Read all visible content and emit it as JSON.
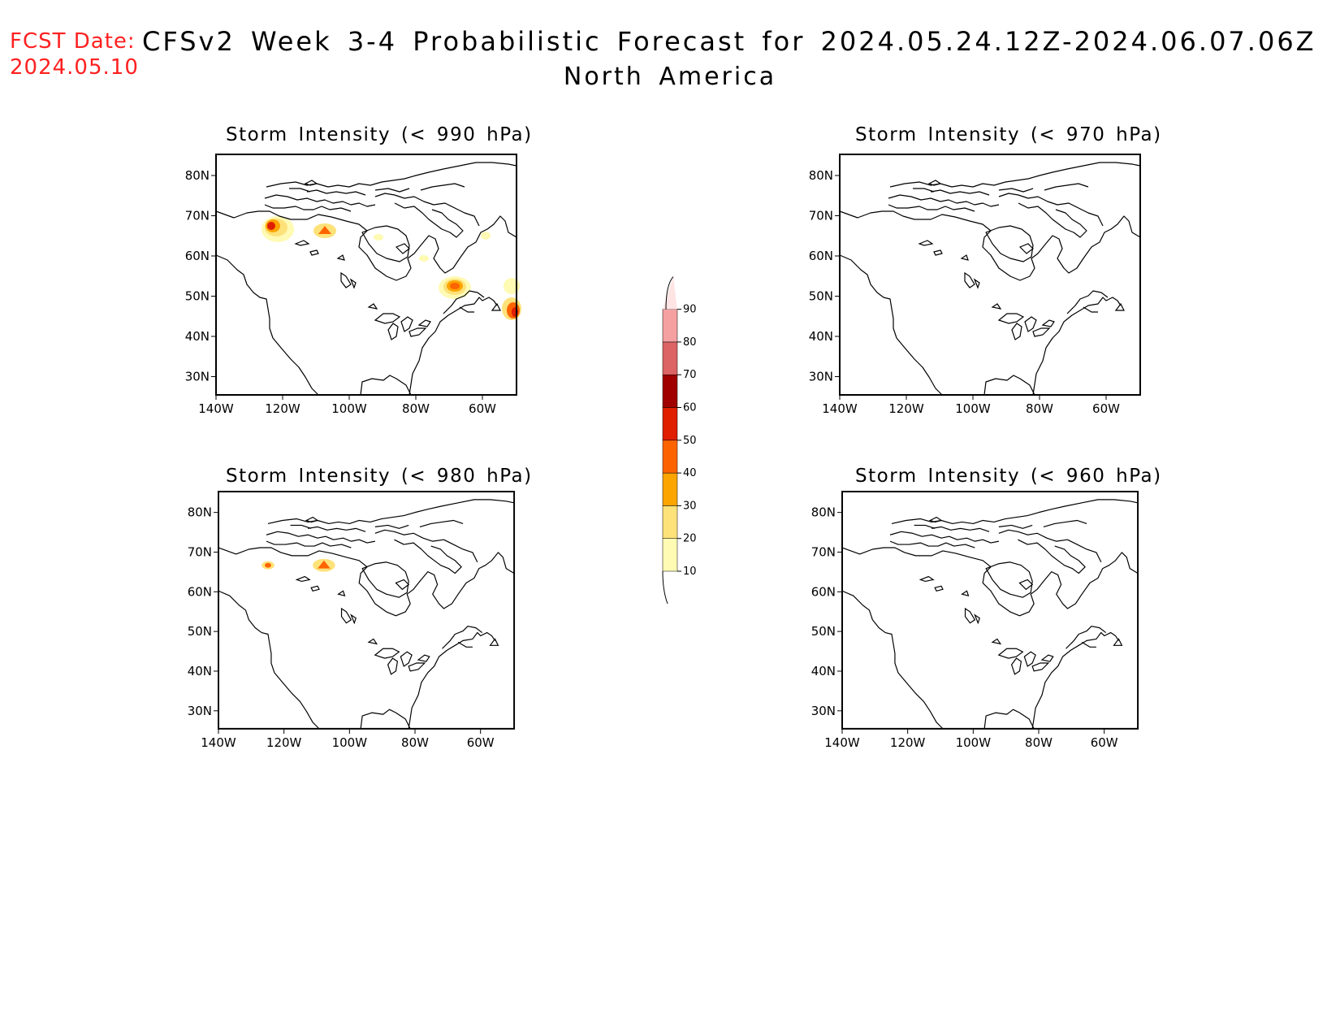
{
  "header": {
    "fcst_label": "FCST Date:",
    "fcst_date": "2024.05.10",
    "title": "CFSv2 Week 3-4 Probabilistic Forecast for 2024.05.24.12Z-2024.06.07.06Z",
    "subtitle": "North America"
  },
  "colors": {
    "header_accent": "#ff2020",
    "scale": [
      "#fffab4",
      "#fde27a",
      "#fca400",
      "#fd6400",
      "#e01e00",
      "#a00000",
      "#dc6464",
      "#f5a0a0",
      "#ffe4e4"
    ]
  },
  "panels": [
    {
      "id": "p1",
      "title": "Storm Intensity (< 990 hPa)"
    },
    {
      "id": "p2",
      "title": "Storm Intensity (< 970 hPa)"
    },
    {
      "id": "p3",
      "title": "Storm Intensity (< 980 hPa)"
    },
    {
      "id": "p4",
      "title": "Storm Intensity (< 960 hPa)"
    }
  ],
  "map": {
    "lon_ticks": [
      "140W",
      "120W",
      "100W",
      "80W",
      "60W"
    ],
    "lat_ticks": [
      "80N",
      "70N",
      "60N",
      "50N",
      "40N",
      "30N"
    ]
  },
  "colorbar": {
    "labels": [
      "10",
      "20",
      "30",
      "40",
      "50",
      "60",
      "70",
      "80",
      "90"
    ]
  }
}
